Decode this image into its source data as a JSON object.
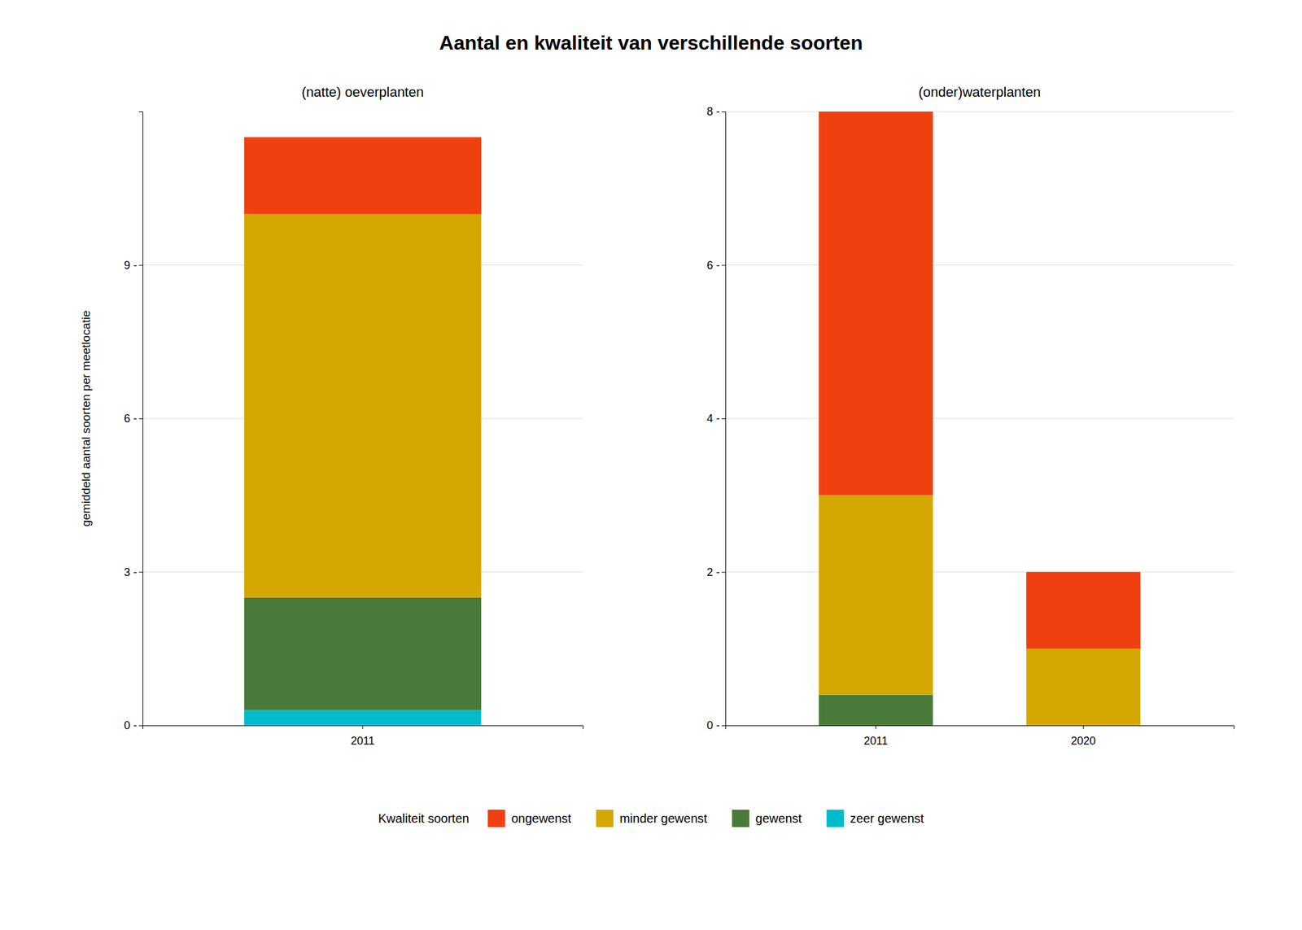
{
  "chart_data": [
    {
      "type": "bar",
      "title": "Aantal en kwaliteit van verschillende soorten",
      "subtitle": "(natte) oeverplanten",
      "ylabel": "gemiddeld aantal soorten per meetlocatie",
      "legend_title": "Kwaliteit soorten",
      "categories": [
        "2011"
      ],
      "series": [
        {
          "name": "zeer gewenst",
          "color": "#00BBCC",
          "values": [
            0.3
          ]
        },
        {
          "name": "gewenst",
          "color": "#4A7A3A",
          "values": [
            2.2
          ]
        },
        {
          "name": "minder gewenst",
          "color": "#D4A800",
          "values": [
            7.5
          ]
        },
        {
          "name": "ongewenst",
          "color": "#F04010",
          "values": [
            1.5
          ]
        }
      ],
      "ylim": [
        0,
        12
      ],
      "yticks": [
        {
          "value": 0,
          "label": "0 -"
        },
        {
          "value": 3,
          "label": "3 -"
        },
        {
          "value": 6,
          "label": "6 -"
        },
        {
          "value": 9,
          "label": "9 -"
        }
      ],
      "stacked": true,
      "grid": true,
      "legend": "bottom"
    },
    {
      "type": "bar",
      "subtitle": "(onder)waterplanten",
      "categories": [
        "2011",
        "2020"
      ],
      "series": [
        {
          "color": "#00BBCC",
          "values": [
            0,
            0
          ]
        },
        {
          "color": "#4A7A3A",
          "values": [
            0.4,
            0
          ]
        },
        {
          "color": "#D4A800",
          "values": [
            2.6,
            1.0
          ]
        },
        {
          "color": "#F04010",
          "values": [
            5.0,
            1.0
          ]
        }
      ],
      "ylim": [
        0,
        8
      ],
      "yticks": [
        {
          "value": 0,
          "label": "0 -"
        },
        {
          "value": 2,
          "label": "2 -"
        },
        {
          "value": 4,
          "label": "4 -"
        },
        {
          "value": 6,
          "label": "6 -"
        },
        {
          "value": 8,
          "label": "8 -"
        }
      ],
      "stacked": true,
      "grid": true
    }
  ]
}
